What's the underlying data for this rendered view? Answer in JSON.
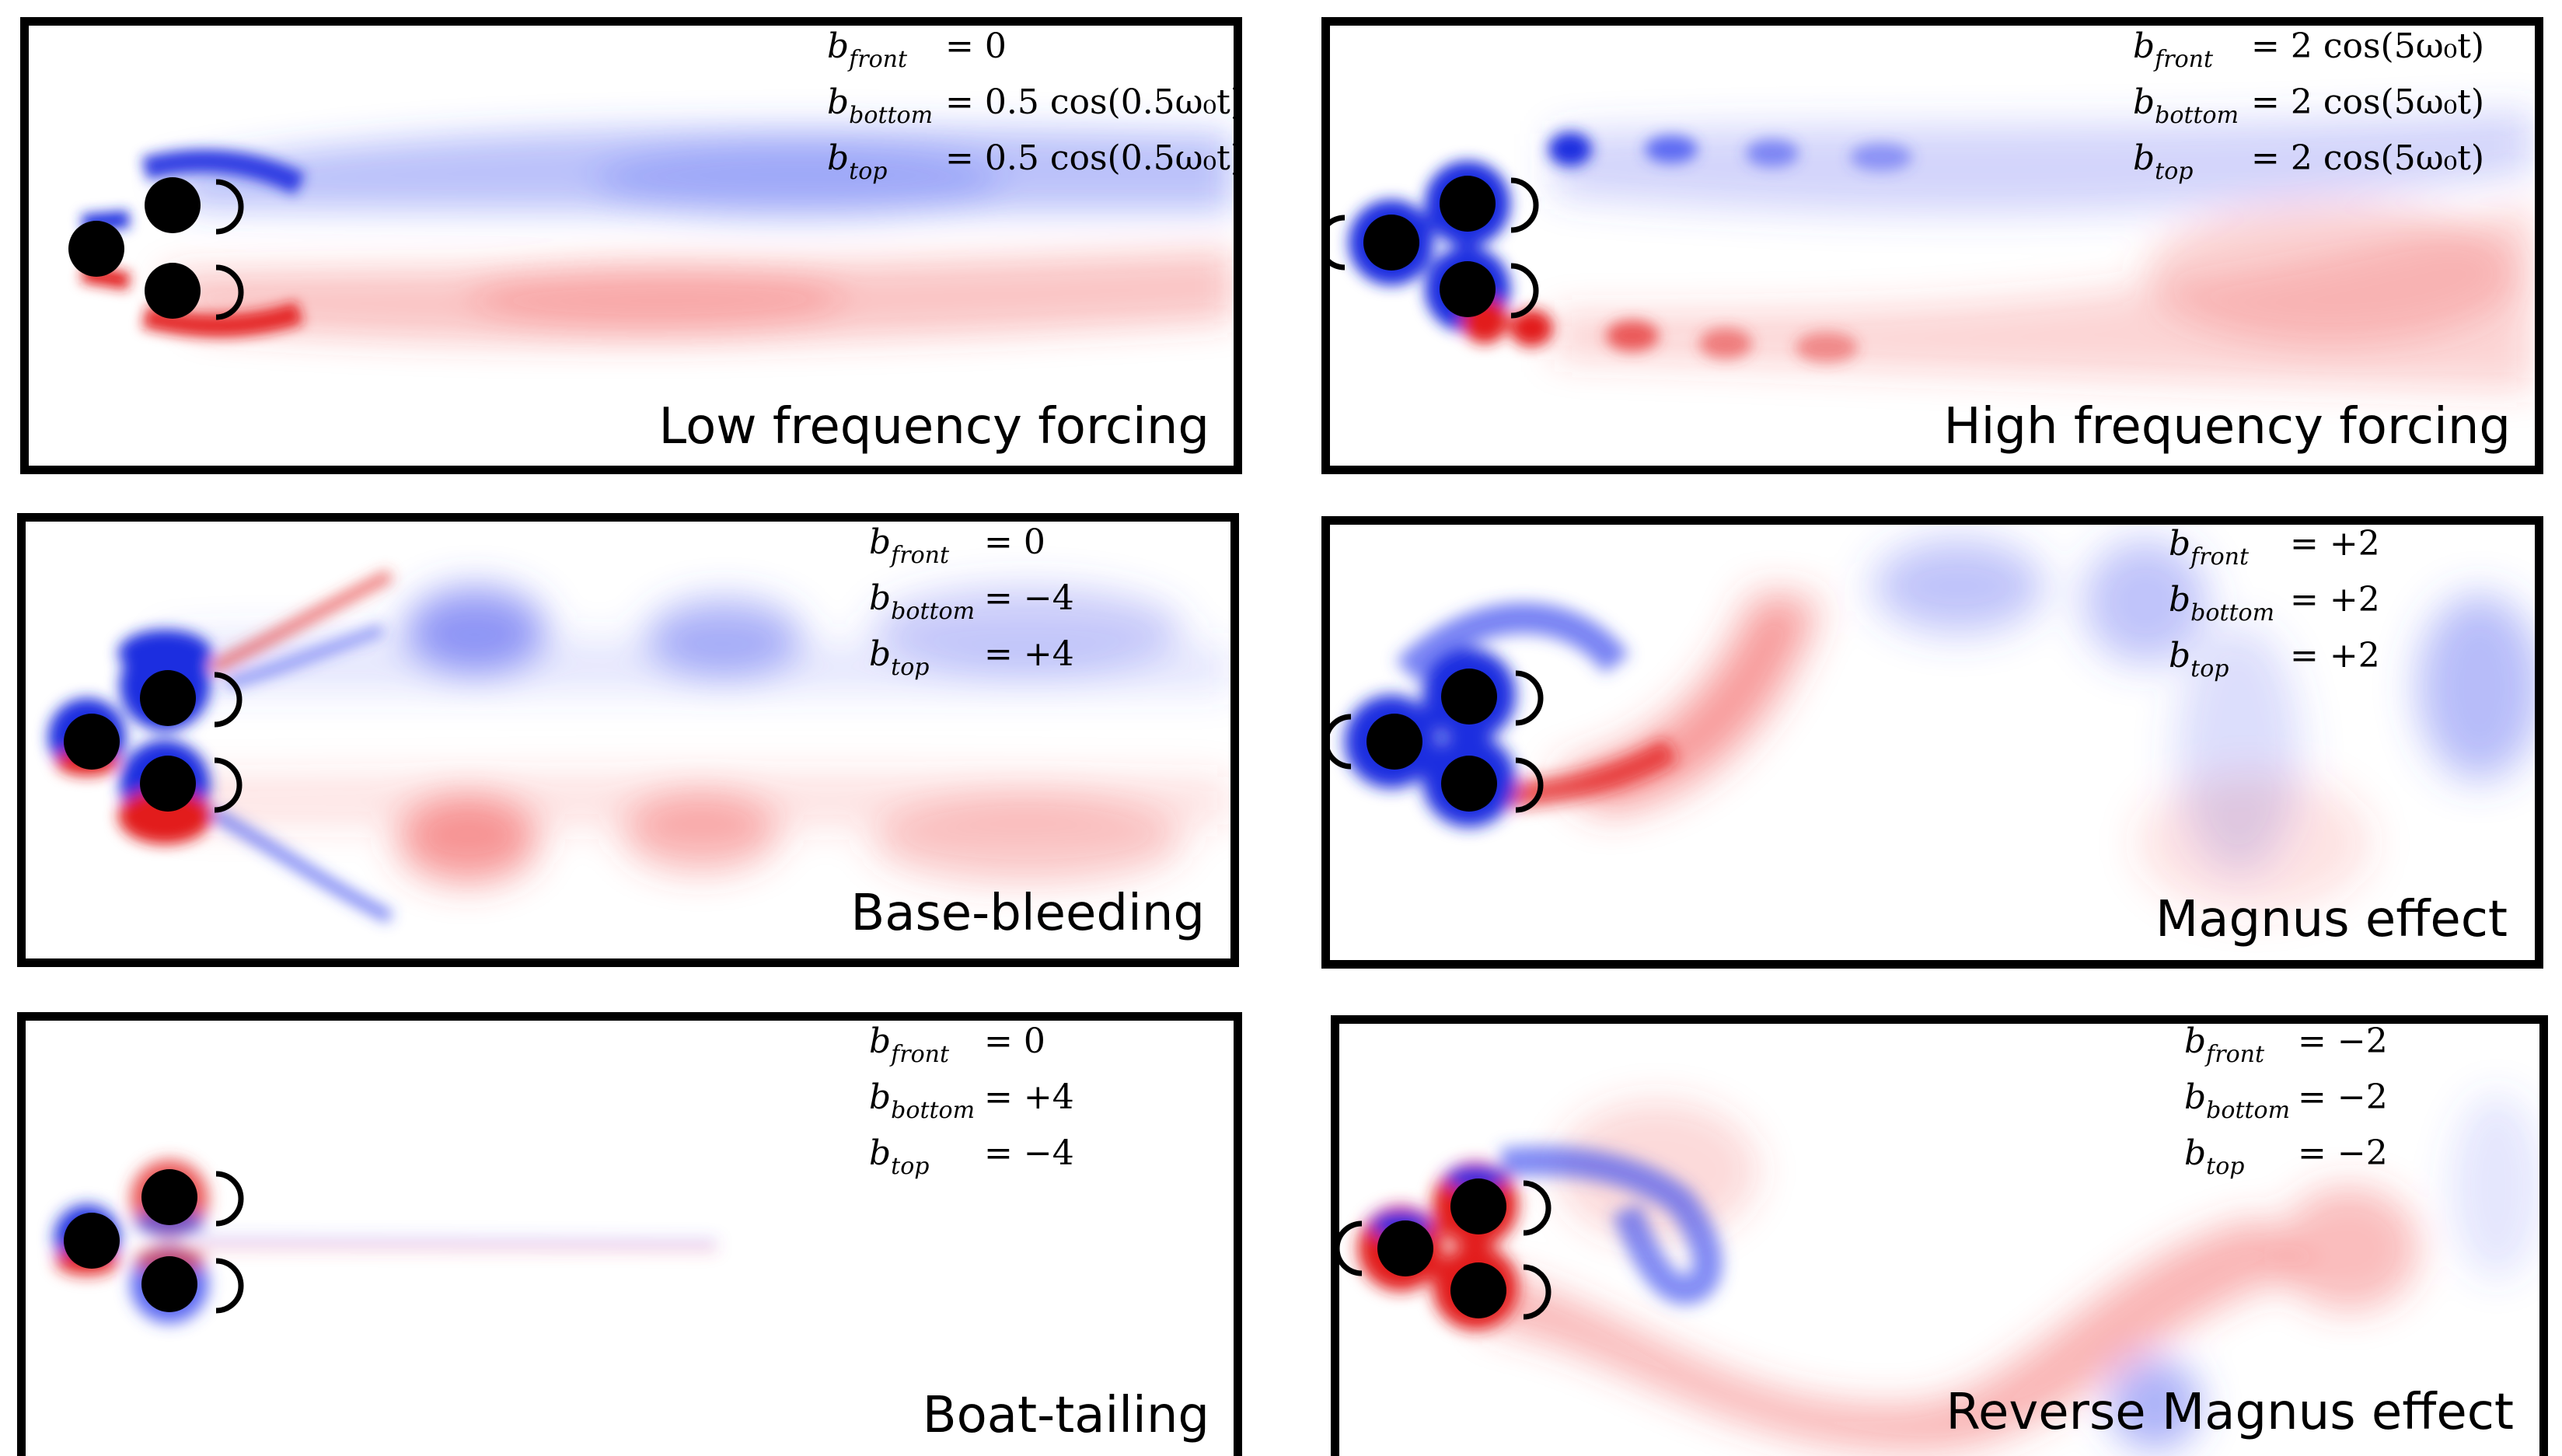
{
  "panels": [
    {
      "id": "low-frequency-forcing",
      "title": "Low frequency forcing",
      "equations": [
        {
          "var": "b",
          "sub": "front",
          "rhs": "= 0"
        },
        {
          "var": "b",
          "sub": "bottom",
          "rhs": "= 0.5 cos(0.5ω₀t)"
        },
        {
          "var": "b",
          "sub": "top",
          "rhs": "= 0.5 cos(0.5ω₀t)"
        }
      ]
    },
    {
      "id": "high-frequency-forcing",
      "title": "High frequency forcing",
      "equations": [
        {
          "var": "b",
          "sub": "front",
          "rhs": "= 2 cos(5ω₀t)"
        },
        {
          "var": "b",
          "sub": "bottom",
          "rhs": "= 2 cos(5ω₀t)"
        },
        {
          "var": "b",
          "sub": "top",
          "rhs": "= 2 cos(5ω₀t)"
        }
      ]
    },
    {
      "id": "base-bleeding",
      "title": "Base-bleeding",
      "equations": [
        {
          "var": "b",
          "sub": "front",
          "rhs": "= 0"
        },
        {
          "var": "b",
          "sub": "bottom",
          "rhs": "= −4"
        },
        {
          "var": "b",
          "sub": "top",
          "rhs": "= +4"
        }
      ]
    },
    {
      "id": "magnus-effect",
      "title": "Magnus effect",
      "equations": [
        {
          "var": "b",
          "sub": "front",
          "rhs": "= +2"
        },
        {
          "var": "b",
          "sub": "bottom",
          "rhs": "= +2"
        },
        {
          "var": "b",
          "sub": "top",
          "rhs": "= +2"
        }
      ]
    },
    {
      "id": "boat-tailing",
      "title": "Boat-tailing",
      "equations": [
        {
          "var": "b",
          "sub": "front",
          "rhs": "= 0"
        },
        {
          "var": "b",
          "sub": "bottom",
          "rhs": "= +4"
        },
        {
          "var": "b",
          "sub": "top",
          "rhs": "= −4"
        }
      ]
    },
    {
      "id": "reverse-magnus-effect",
      "title": "Reverse Magnus effect",
      "equations": [
        {
          "var": "b",
          "sub": "front",
          "rhs": "= −2"
        },
        {
          "var": "b",
          "sub": "bottom",
          "rhs": "= −2"
        },
        {
          "var": "b",
          "sub": "top",
          "rhs": "= −2"
        }
      ]
    }
  ],
  "colors": {
    "positive_vorticity": "#e21b1b",
    "negative_vorticity": "#1f2de0",
    "cylinder": "#000000",
    "frame": "#000000"
  }
}
